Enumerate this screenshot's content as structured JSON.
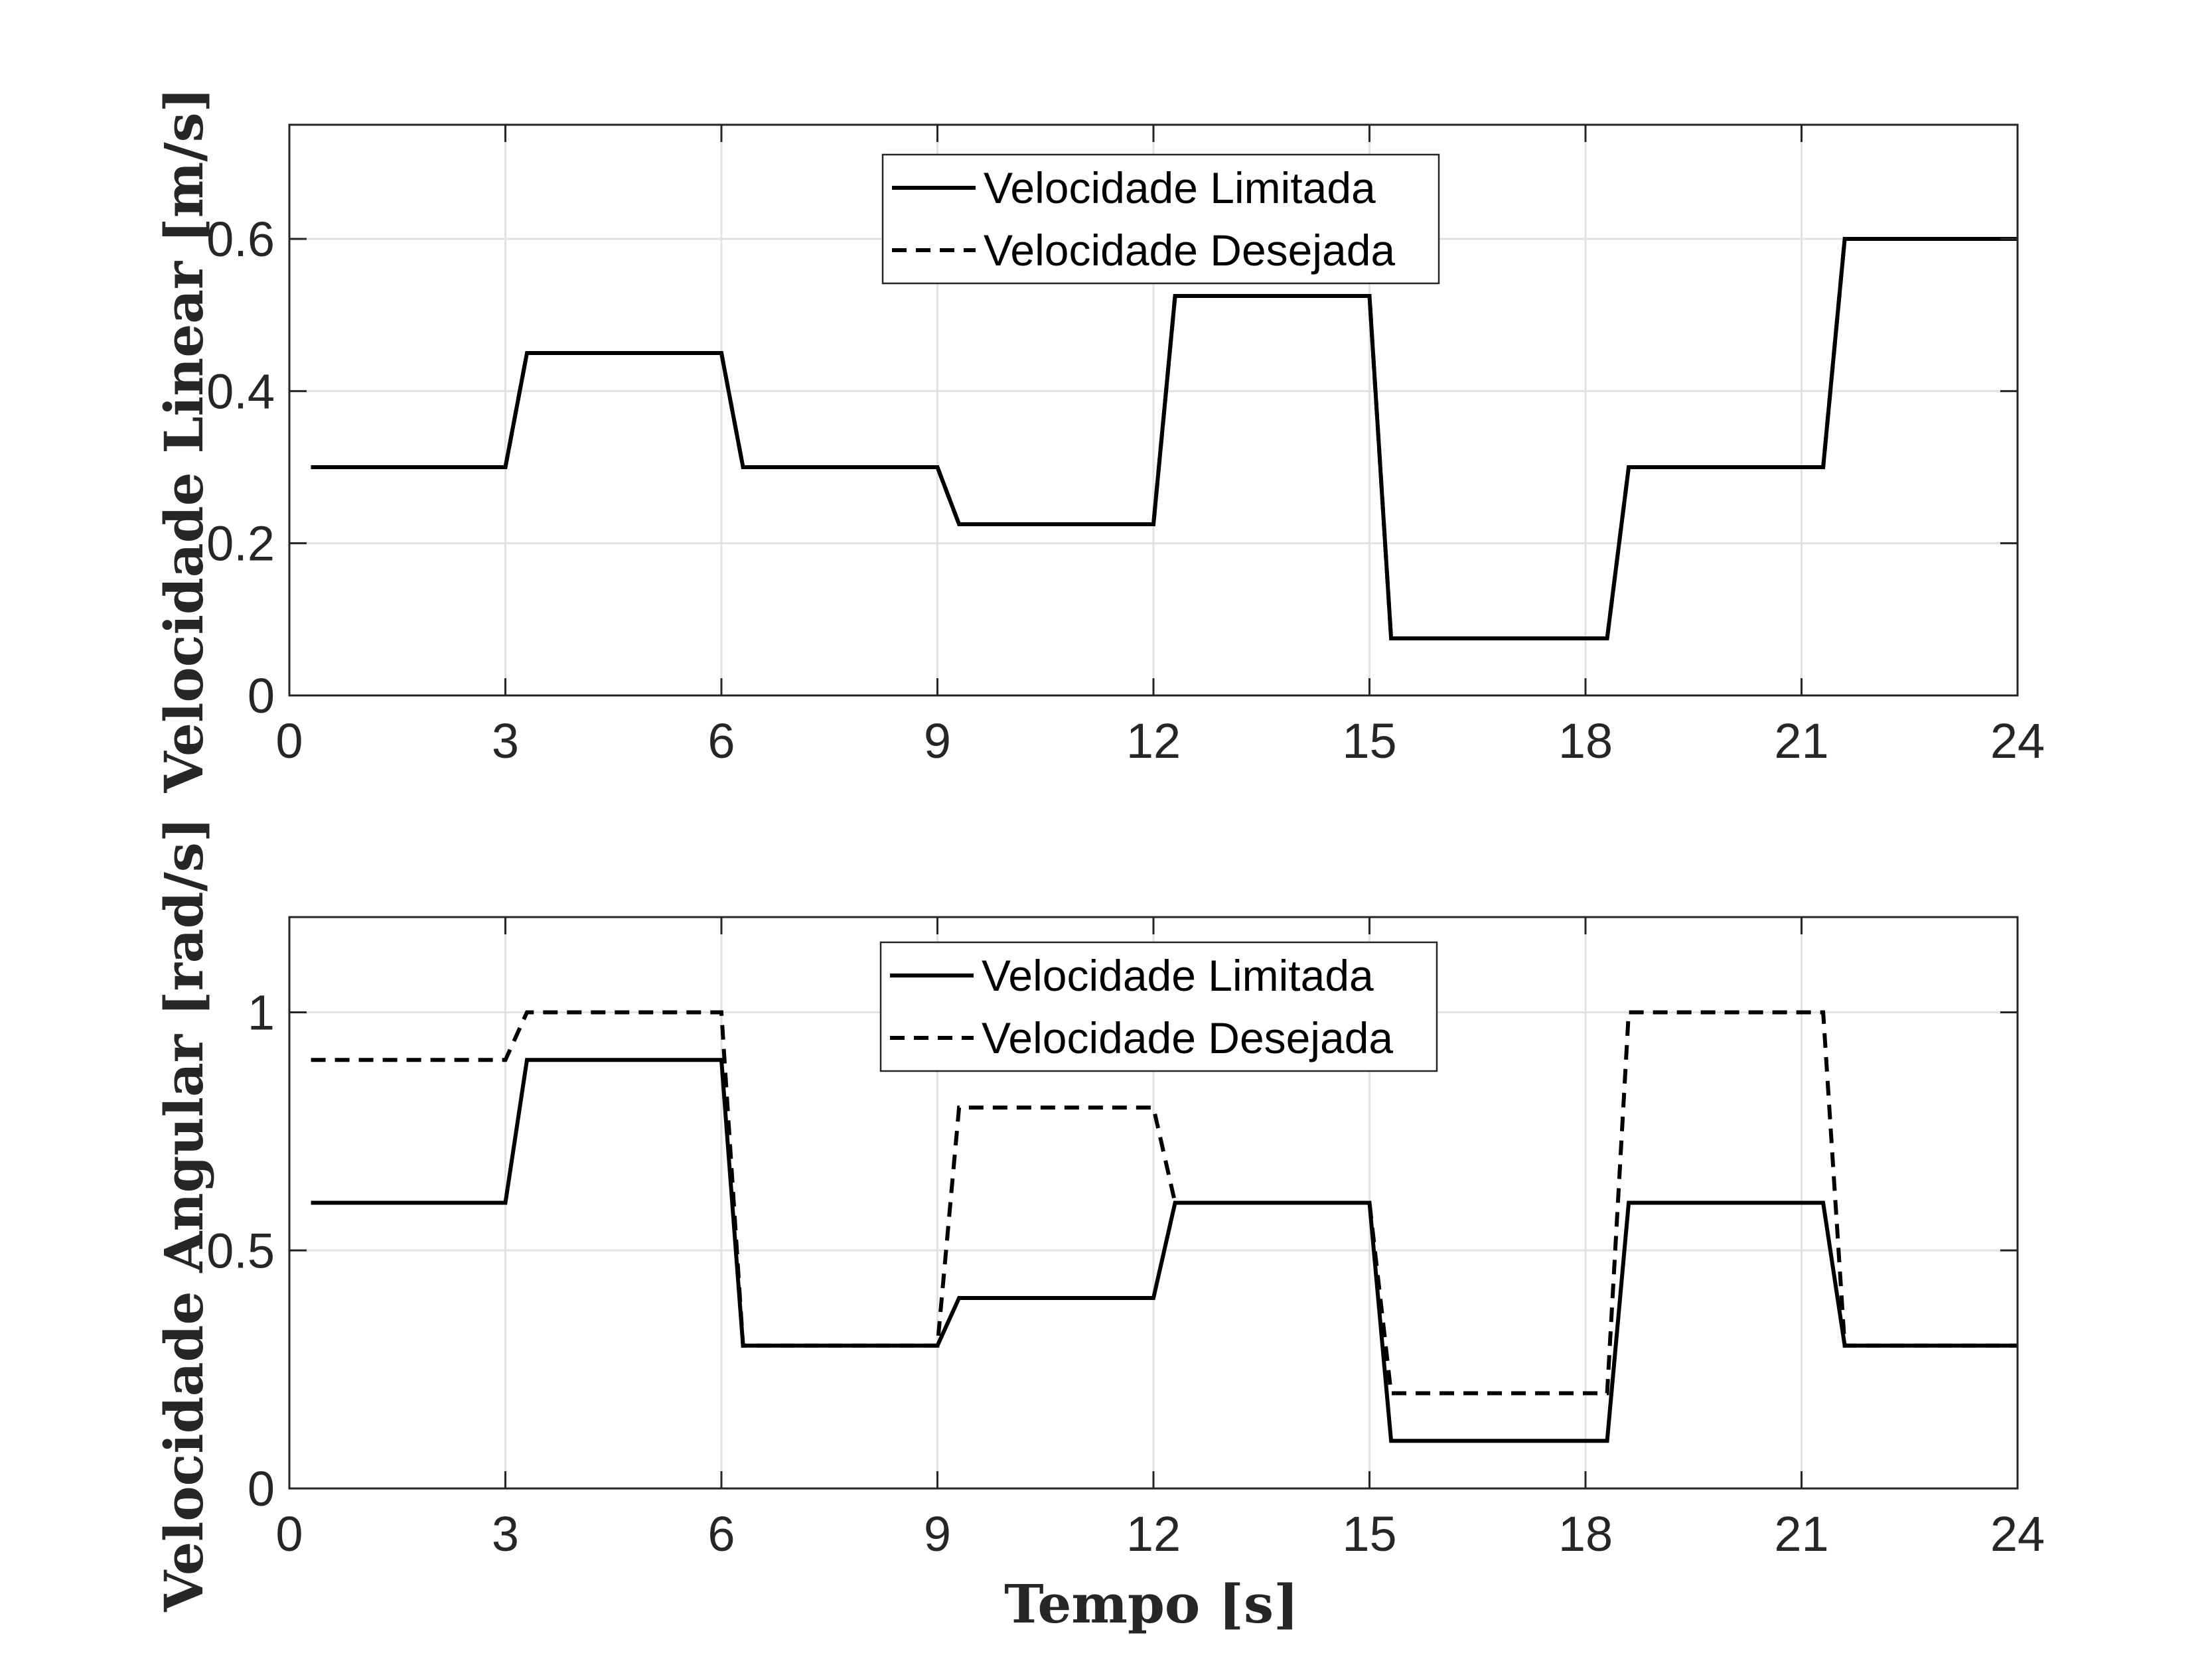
{
  "chart_data": [
    {
      "type": "line",
      "ylabel": "Velocidade Linear [m/s]",
      "xlabel": "",
      "xlim": [
        0,
        24
      ],
      "ylim": [
        0,
        0.75
      ],
      "xticks": [
        0,
        3,
        6,
        9,
        12,
        15,
        18,
        21,
        24
      ],
      "yticks": [
        0,
        0.2,
        0.4,
        0.6
      ],
      "ytick_labels": [
        "0",
        "0.2",
        "0.4",
        "0.6"
      ],
      "grid": true,
      "legend_position": "top-center",
      "series": [
        {
          "name": "Velocidade Limitada",
          "style": "solid",
          "color": "#000000",
          "x": [
            0.3,
            3,
            3.3,
            6,
            6.3,
            9,
            9.3,
            12,
            12.3,
            15,
            15.3,
            18.3,
            18.6,
            21.3,
            21.6,
            24
          ],
          "y": [
            0.3,
            0.3,
            0.45,
            0.45,
            0.3,
            0.3,
            0.225,
            0.225,
            0.525,
            0.525,
            0.075,
            0.075,
            0.3,
            0.3,
            0.6,
            0.6
          ]
        },
        {
          "name": "Velocidade Desejada",
          "style": "dashed",
          "color": "#000000",
          "x": [
            0.3,
            3,
            3.3,
            6,
            6.3,
            9,
            9.3,
            12,
            12.3,
            15,
            15.3,
            18.3,
            18.6,
            21.3,
            21.6,
            24
          ],
          "y": [
            0.3,
            0.3,
            0.45,
            0.45,
            0.3,
            0.3,
            0.225,
            0.225,
            0.525,
            0.525,
            0.075,
            0.075,
            0.3,
            0.3,
            0.6,
            0.6
          ]
        }
      ]
    },
    {
      "type": "line",
      "ylabel": "Velocidade Angular [rad/s]",
      "xlabel": "Tempo [s]",
      "xlim": [
        0,
        24
      ],
      "ylim": [
        0,
        1.2
      ],
      "xticks": [
        0,
        3,
        6,
        9,
        12,
        15,
        18,
        21,
        24
      ],
      "yticks": [
        0,
        0.5,
        1
      ],
      "ytick_labels": [
        "0",
        "0.5",
        "1"
      ],
      "grid": true,
      "legend_position": "top-center",
      "series": [
        {
          "name": "Velocidade Limitada",
          "style": "solid",
          "color": "#000000",
          "x": [
            0.3,
            3,
            3.3,
            6,
            6.3,
            9,
            9.3,
            12,
            12.3,
            15,
            15.3,
            18.3,
            18.6,
            21.3,
            21.6,
            24
          ],
          "y": [
            0.6,
            0.6,
            0.9,
            0.9,
            0.3,
            0.3,
            0.4,
            0.4,
            0.6,
            0.6,
            0.1,
            0.1,
            0.6,
            0.6,
            0.3,
            0.3
          ]
        },
        {
          "name": "Velocidade Desejada",
          "style": "dashed",
          "color": "#000000",
          "x": [
            0.3,
            3,
            3.3,
            6,
            6.3,
            9,
            9.3,
            12,
            12.3,
            15,
            15.3,
            18.3,
            18.6,
            21.3,
            21.6,
            24
          ],
          "y": [
            0.9,
            0.9,
            1.0,
            1.0,
            0.3,
            0.3,
            0.8,
            0.8,
            0.6,
            0.6,
            0.2,
            0.2,
            1.0,
            1.0,
            0.3,
            0.3
          ]
        }
      ]
    }
  ]
}
